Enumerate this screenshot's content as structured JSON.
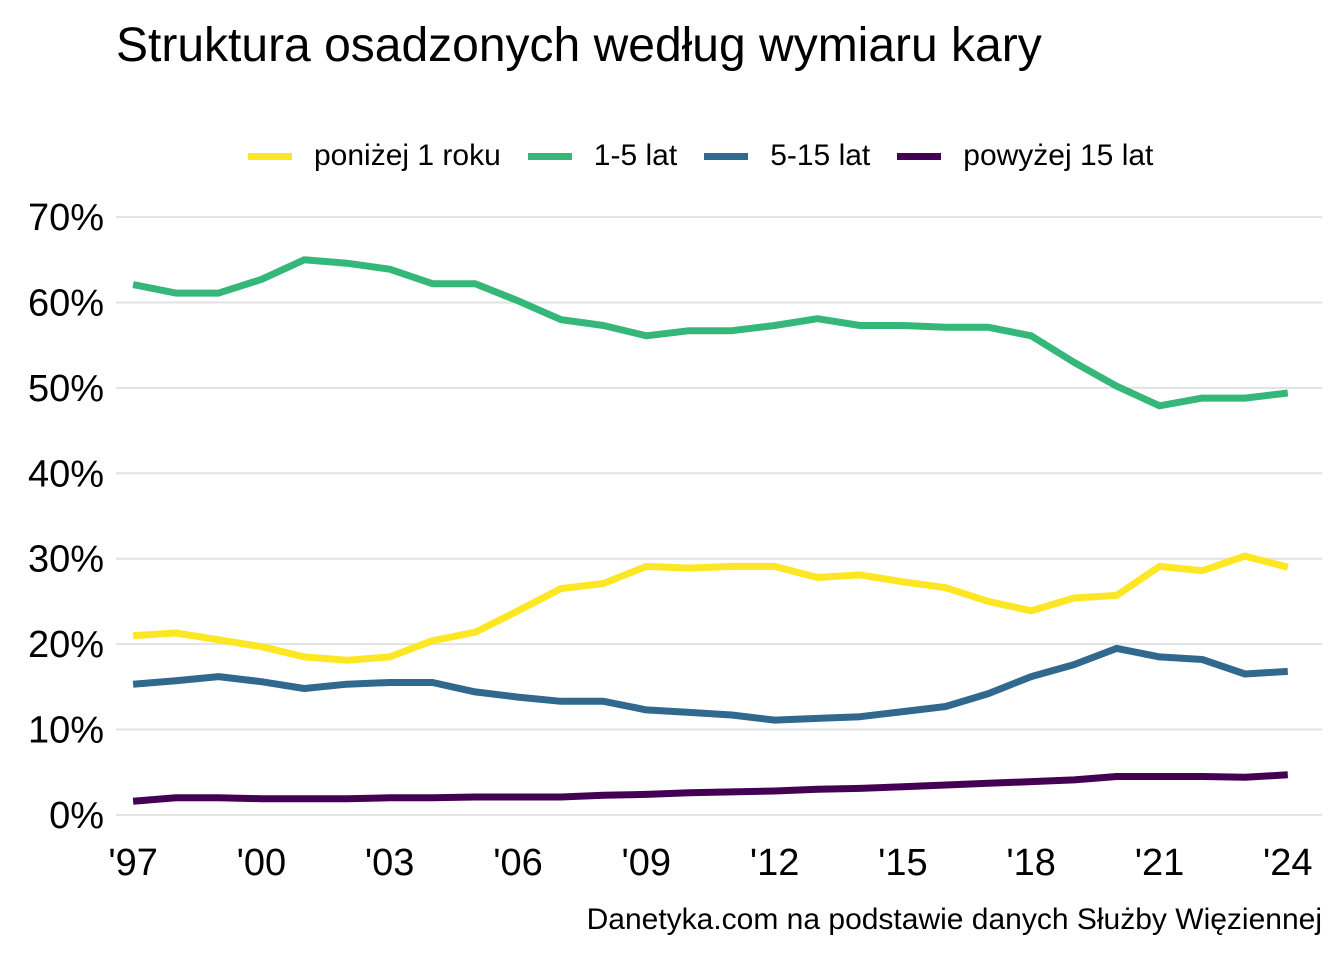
{
  "chart_data": {
    "type": "line",
    "title": "Struktura osadzonych według wymiaru kary",
    "caption": "Danetyka.com na podstawie danych Służby Więziennej",
    "xlabel": "",
    "ylabel": "",
    "x": [
      1997,
      1998,
      1999,
      2000,
      2001,
      2002,
      2003,
      2004,
      2005,
      2006,
      2007,
      2008,
      2009,
      2010,
      2011,
      2012,
      2013,
      2014,
      2015,
      2016,
      2017,
      2018,
      2019,
      2020,
      2021,
      2022,
      2023,
      2024
    ],
    "xlim": [
      1996.6,
      2024.8
    ],
    "xticks": [
      1997,
      2000,
      2003,
      2006,
      2009,
      2012,
      2015,
      2018,
      2021,
      2024
    ],
    "xtick_labels": [
      "'97",
      "'00",
      "'03",
      "'06",
      "'09",
      "'12",
      "'15",
      "'18",
      "'21",
      "'24"
    ],
    "ylim": [
      -2,
      72
    ],
    "yticks": [
      0,
      10,
      20,
      30,
      40,
      50,
      60,
      70
    ],
    "ytick_labels": [
      "0%",
      "10%",
      "20%",
      "30%",
      "40%",
      "50%",
      "60%",
      "70%"
    ],
    "grid": "horizontal",
    "legend_position": "top",
    "series": [
      {
        "name": "poniżej 1 roku",
        "color": "#FDE725",
        "values": [
          21.0,
          21.3,
          20.5,
          19.7,
          18.5,
          18.1,
          18.5,
          20.4,
          21.4,
          23.9,
          26.5,
          27.1,
          29.1,
          28.9,
          29.1,
          29.1,
          27.8,
          28.1,
          27.3,
          26.6,
          25.0,
          23.9,
          25.4,
          25.7,
          29.1,
          28.6,
          30.3,
          29.0
        ]
      },
      {
        "name": "1-5 lat",
        "color": "#35B779",
        "values": [
          62.1,
          61.1,
          61.1,
          62.7,
          65.0,
          64.6,
          63.9,
          62.2,
          62.2,
          60.2,
          58.0,
          57.3,
          56.1,
          56.7,
          56.7,
          57.3,
          58.1,
          57.3,
          57.3,
          57.1,
          57.1,
          56.1,
          53.0,
          50.2,
          47.9,
          48.8,
          48.8,
          49.4
        ]
      },
      {
        "name": "5-15 lat",
        "color": "#31688E",
        "values": [
          15.3,
          15.7,
          16.2,
          15.6,
          14.8,
          15.3,
          15.5,
          15.5,
          14.4,
          13.8,
          13.3,
          13.3,
          12.3,
          12.0,
          11.7,
          11.1,
          11.3,
          11.5,
          12.1,
          12.7,
          14.2,
          16.2,
          17.6,
          19.5,
          18.5,
          18.2,
          16.5,
          16.8
        ]
      },
      {
        "name": "powyżej 15 lat",
        "color": "#440154",
        "values": [
          1.6,
          2.0,
          2.0,
          1.9,
          1.9,
          1.9,
          2.0,
          2.0,
          2.1,
          2.1,
          2.1,
          2.3,
          2.4,
          2.6,
          2.7,
          2.8,
          3.0,
          3.1,
          3.3,
          3.5,
          3.7,
          3.9,
          4.1,
          4.5,
          4.5,
          4.5,
          4.4,
          4.7
        ]
      }
    ]
  }
}
